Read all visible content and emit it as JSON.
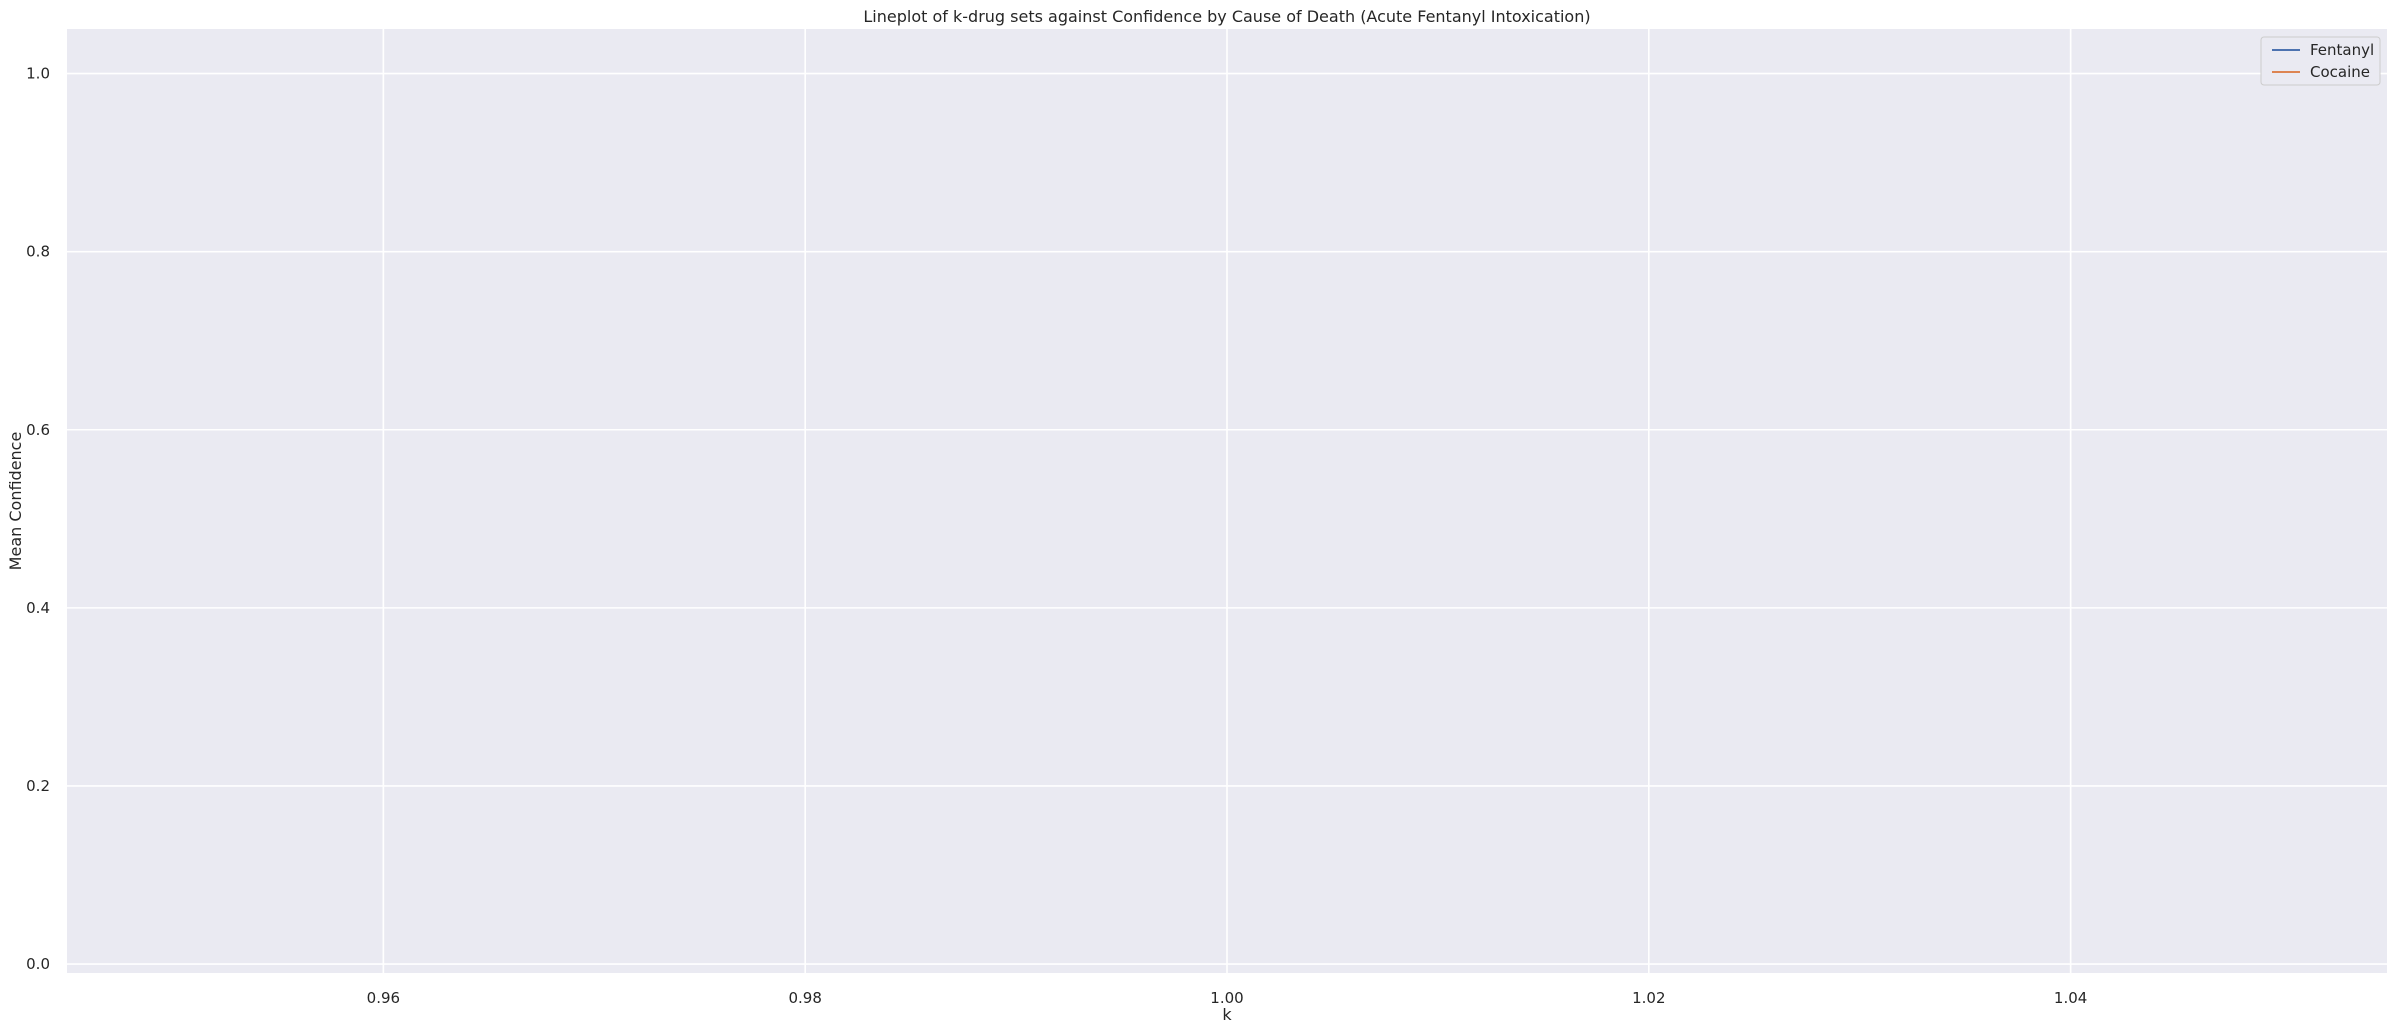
{
  "chart_data": {
    "type": "line",
    "title": "Lineplot of k-drug sets against Confidence by Cause of Death (Acute Fentanyl Intoxication)",
    "xlabel": "k",
    "ylabel": "Mean Confidence",
    "xlim": [
      0.945,
      1.055
    ],
    "ylim": [
      -0.01,
      1.05
    ],
    "x_ticks": [
      0.96,
      0.98,
      1.0,
      1.02,
      1.04
    ],
    "x_tick_labels": [
      "0.96",
      "0.98",
      "1.00",
      "1.02",
      "1.04"
    ],
    "y_ticks": [
      0.0,
      0.2,
      0.4,
      0.6,
      0.8,
      1.0
    ],
    "y_tick_labels": [
      "0.0",
      "0.2",
      "0.4",
      "0.6",
      "0.8",
      "1.0"
    ],
    "grid": true,
    "legend_position": "top-right",
    "series": [
      {
        "name": "Fentanyl",
        "color": "#4c72b0",
        "x": [],
        "y": []
      },
      {
        "name": "Cocaine",
        "color": "#dd8452",
        "x": [],
        "y": []
      }
    ],
    "background_color": "#eaeaf2",
    "grid_color": "#ffffff"
  }
}
